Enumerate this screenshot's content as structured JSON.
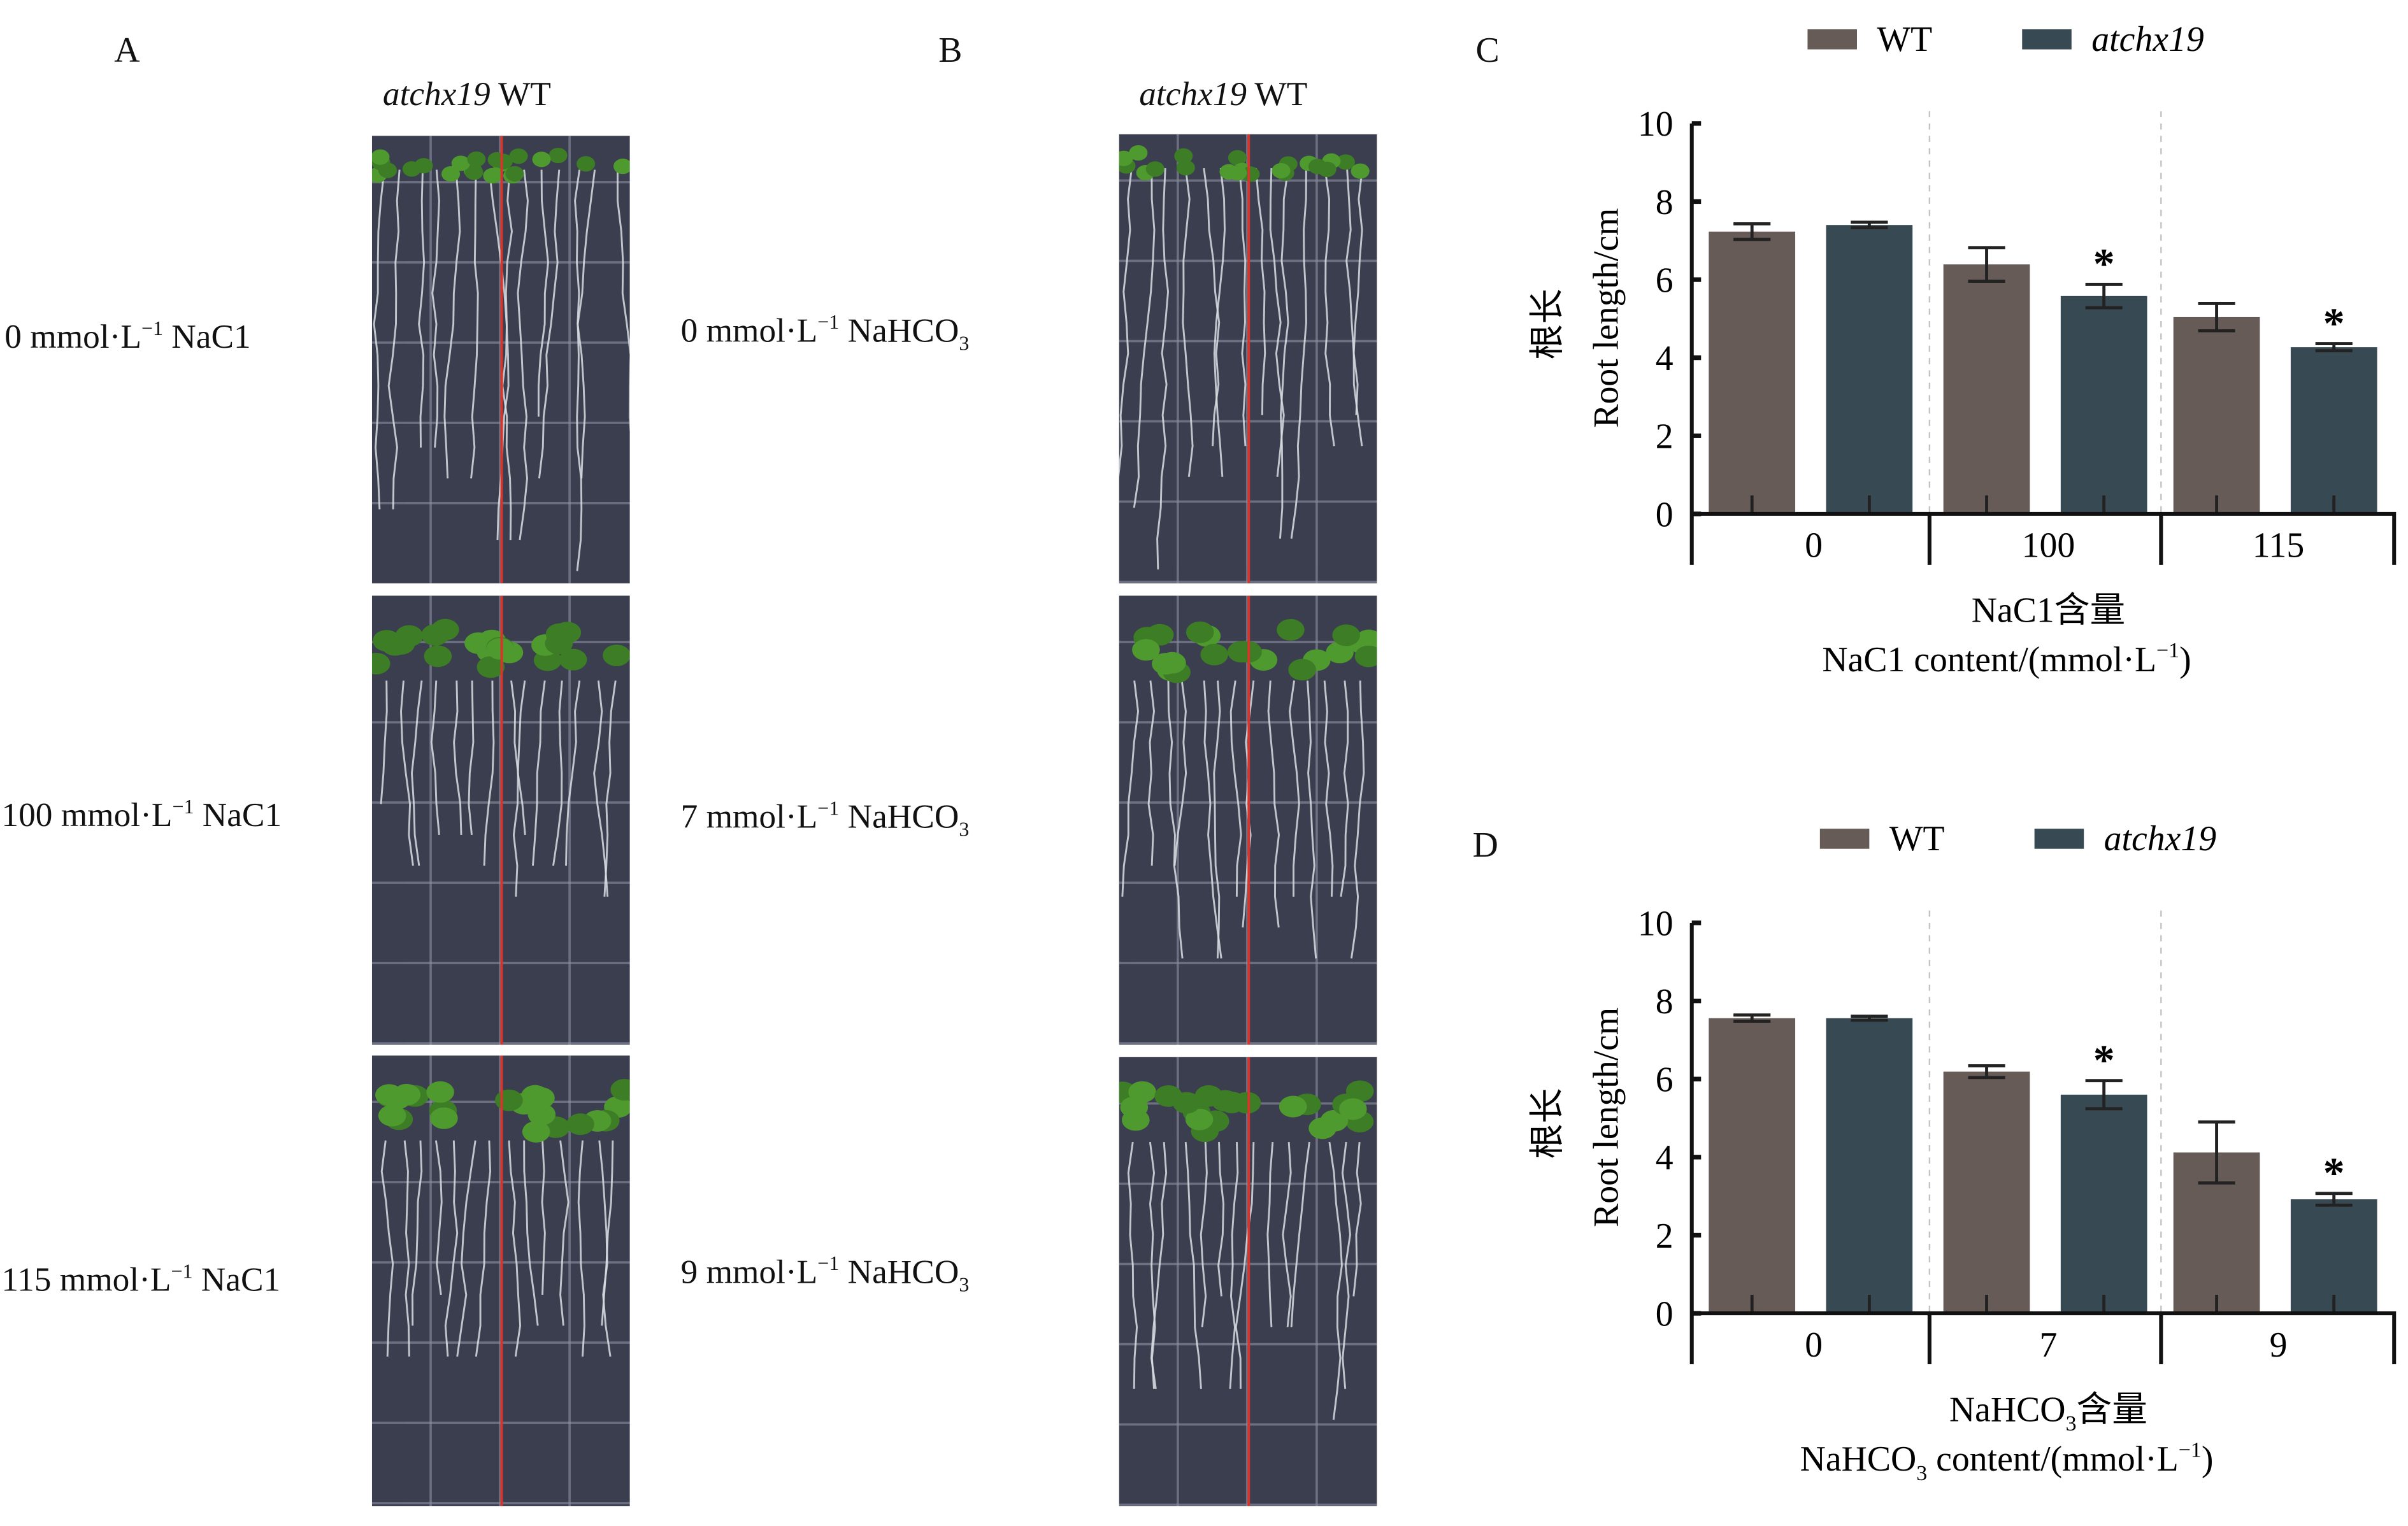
{
  "panels": {
    "a": "A",
    "b": "B",
    "c": "C",
    "d": "D"
  },
  "photo_header": {
    "mutant": "atchx19",
    "wt": "WT"
  },
  "panel_a_labels": [
    {
      "value": "0",
      "unit": "mmol·L",
      "exp": "−1",
      "salt": "NaC1"
    },
    {
      "value": "100",
      "unit": "mmol·L",
      "exp": "−1",
      "salt": "NaC1"
    },
    {
      "value": "115",
      "unit": "mmol·L",
      "exp": "−1",
      "salt": "NaC1"
    }
  ],
  "panel_b_labels": [
    {
      "value": "0",
      "unit": "mmol·L",
      "exp": "−1",
      "salt": "NaHCO",
      "sub": "3"
    },
    {
      "value": "7",
      "unit": "mmol·L",
      "exp": "−1",
      "salt": "NaHCO",
      "sub": "3"
    },
    {
      "value": "9",
      "unit": "mmol·L",
      "exp": "−1",
      "salt": "NaHCO",
      "sub": "3"
    }
  ],
  "colors": {
    "wt": "#665b57",
    "atchx19": "#374a53",
    "divider_line": "#d9342b"
  },
  "chart_data": [
    {
      "type": "bar",
      "panel": "C",
      "categories": [
        "0",
        "100",
        "115"
      ],
      "series": [
        {
          "name": "WT",
          "values": [
            7.23,
            6.39,
            5.04
          ],
          "errors": [
            0.2,
            0.43,
            0.35
          ]
        },
        {
          "name": "atchx19",
          "values": [
            7.4,
            5.58,
            4.27
          ],
          "errors": [
            0.07,
            0.3,
            0.09
          ]
        }
      ],
      "significance": [
        [
          "",
          "",
          ""
        ],
        [
          "",
          "*",
          "*"
        ]
      ],
      "ylabel_cn": "根长",
      "ylabel": "Root length/cm",
      "ylim": [
        0,
        10
      ],
      "yticks": [
        "0",
        "2",
        "4",
        "6",
        "8",
        "10"
      ],
      "xlabel_cn_pre": "NaC1",
      "xlabel_cn_sub": "",
      "xlabel_cn_post": "含量",
      "xlabel_pre": "NaC1 content/(mmol·L",
      "xlabel_sub": "",
      "xlabel_exp": "−1",
      "xlabel_post": ")",
      "legend": "top"
    },
    {
      "type": "bar",
      "panel": "D",
      "categories": [
        "0",
        "7",
        "9"
      ],
      "series": [
        {
          "name": "WT",
          "values": [
            7.56,
            6.19,
            4.12
          ],
          "errors": [
            0.08,
            0.15,
            0.78
          ]
        },
        {
          "name": "atchx19",
          "values": [
            7.56,
            5.6,
            2.92
          ],
          "errors": [
            0.05,
            0.36,
            0.15
          ]
        }
      ],
      "significance": [
        [
          "",
          "",
          ""
        ],
        [
          "",
          "*",
          "*"
        ]
      ],
      "ylabel_cn": "根长",
      "ylabel": "Root length/cm",
      "ylim": [
        0,
        10
      ],
      "yticks": [
        "0",
        "2",
        "4",
        "6",
        "8",
        "10"
      ],
      "xlabel_cn_pre": "NaHCO",
      "xlabel_cn_sub": "3",
      "xlabel_cn_post": "含量",
      "xlabel_pre": "NaHCO",
      "xlabel_sub": "3",
      "xlabel_exp": "−1",
      "xlabel_post": " content/(mmol·L",
      "xlabel_close": ")",
      "legend": "top"
    }
  ]
}
